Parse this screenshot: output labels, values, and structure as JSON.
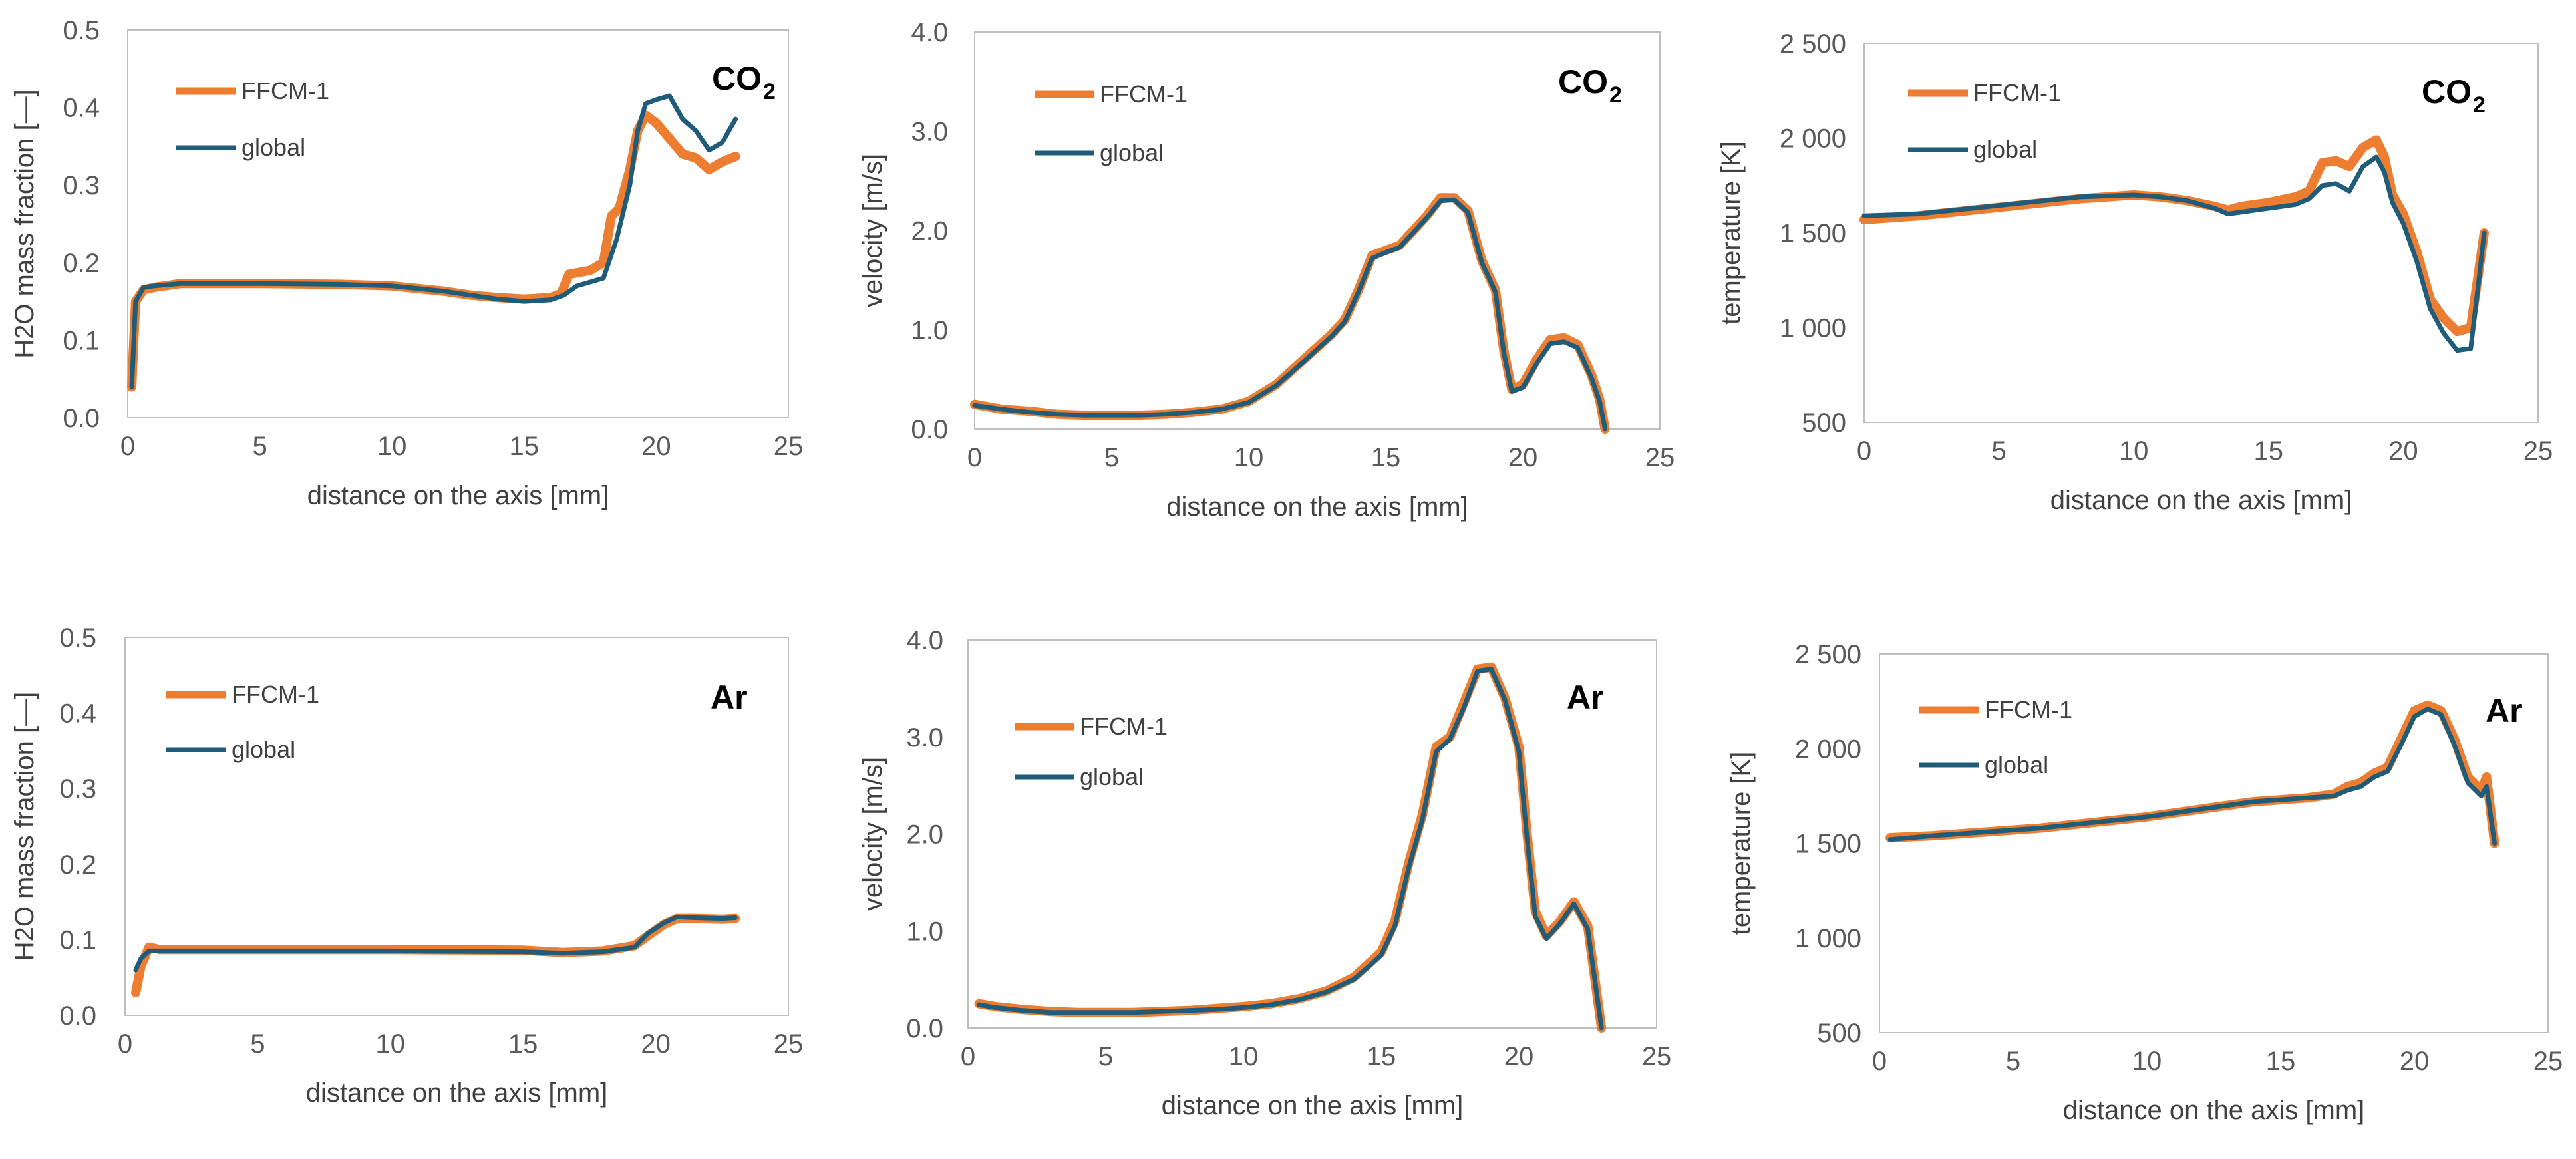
{
  "colors": {
    "ffcm": "#ED7D31",
    "global": "#1F5C7A",
    "axis": "#BFBFBF",
    "text": "#404040"
  },
  "chart_data": [
    {
      "type": "line",
      "id": "co2-h2o",
      "gas_label": "CO",
      "gas_subscript": "2",
      "xlabel": "distance on the axis [mm]",
      "ylabel": "H2O mass fraction  [—]",
      "xlim": [
        0,
        25
      ],
      "ylim": [
        0,
        0.5
      ],
      "xticks": [
        0,
        5,
        10,
        15,
        20,
        25
      ],
      "xtick_labels": [
        "0",
        "5",
        "10",
        "15",
        "20",
        "25"
      ],
      "yticks": [
        0,
        0.1,
        0.2,
        0.3,
        0.4,
        0.5
      ],
      "ytick_labels": [
        "0.0",
        "0.1",
        "0.2",
        "0.3",
        "0.4",
        "0.5"
      ],
      "legend": [
        "FFCM-1",
        "global"
      ],
      "series": [
        {
          "name": "FFCM-1",
          "x": [
            0.15,
            0.3,
            0.6,
            1,
            2,
            5,
            8,
            10,
            12,
            13,
            14,
            15,
            16,
            16.4,
            16.7,
            17.5,
            18,
            18.3,
            18.6,
            19,
            19.3,
            19.6,
            20,
            20.5,
            21,
            21.5,
            22,
            22.5,
            23
          ],
          "y": [
            0.04,
            0.15,
            0.165,
            0.168,
            0.173,
            0.173,
            0.172,
            0.17,
            0.163,
            0.158,
            0.155,
            0.153,
            0.155,
            0.16,
            0.185,
            0.19,
            0.2,
            0.26,
            0.27,
            0.32,
            0.37,
            0.39,
            0.38,
            0.36,
            0.34,
            0.335,
            0.32,
            0.33,
            0.337
          ]
        },
        {
          "name": "global",
          "x": [
            0.15,
            0.3,
            0.6,
            1,
            2,
            5,
            8,
            10,
            12,
            13,
            14,
            15,
            16,
            16.5,
            17,
            17.5,
            18,
            18.5,
            19,
            19.3,
            19.6,
            20,
            20.5,
            21,
            21.5,
            22,
            22.5,
            23
          ],
          "y": [
            0.04,
            0.15,
            0.168,
            0.17,
            0.173,
            0.173,
            0.172,
            0.17,
            0.163,
            0.158,
            0.153,
            0.15,
            0.152,
            0.158,
            0.17,
            0.175,
            0.18,
            0.23,
            0.3,
            0.37,
            0.405,
            0.41,
            0.415,
            0.385,
            0.37,
            0.345,
            0.355,
            0.385
          ]
        }
      ]
    },
    {
      "type": "line",
      "id": "co2-velocity",
      "gas_label": "CO",
      "gas_subscript": "2",
      "xlabel": "distance on the axis [mm]",
      "ylabel": "velocity [m/s]",
      "xlim": [
        0,
        25
      ],
      "ylim": [
        0,
        4
      ],
      "xticks": [
        0,
        5,
        10,
        15,
        20,
        25
      ],
      "xtick_labels": [
        "0",
        "5",
        "10",
        "15",
        "20",
        "25"
      ],
      "yticks": [
        0,
        1,
        2,
        3,
        4
      ],
      "ytick_labels": [
        "0.0",
        "1.0",
        "2.0",
        "3.0",
        "4.0"
      ],
      "legend": [
        "FFCM-1",
        "global"
      ],
      "series": [
        {
          "name": "FFCM-1",
          "x": [
            0,
            1,
            2,
            3,
            4,
            5,
            6,
            7,
            8,
            9,
            10,
            11,
            12,
            13,
            13.5,
            14,
            14.5,
            15,
            15.5,
            16,
            16.5,
            17,
            17.5,
            18,
            18.5,
            19,
            19.3,
            19.6,
            20,
            20.5,
            21,
            21.5,
            22,
            22.5,
            22.8,
            23
          ],
          "y": [
            0.25,
            0.2,
            0.18,
            0.15,
            0.14,
            0.14,
            0.14,
            0.15,
            0.17,
            0.2,
            0.28,
            0.45,
            0.7,
            0.95,
            1.1,
            1.4,
            1.75,
            1.8,
            1.85,
            2.0,
            2.15,
            2.33,
            2.33,
            2.2,
            1.7,
            1.4,
            0.8,
            0.4,
            0.45,
            0.7,
            0.9,
            0.92,
            0.85,
            0.55,
            0.3,
            0.0
          ]
        },
        {
          "name": "global",
          "x": [
            0,
            1,
            2,
            3,
            4,
            5,
            6,
            7,
            8,
            9,
            10,
            11,
            12,
            13,
            13.5,
            14,
            14.5,
            15,
            15.5,
            16,
            16.5,
            17,
            17.5,
            18,
            18.5,
            19,
            19.3,
            19.6,
            20,
            20.5,
            21,
            21.5,
            22,
            22.5,
            22.8,
            23
          ],
          "y": [
            0.24,
            0.2,
            0.17,
            0.15,
            0.14,
            0.14,
            0.14,
            0.15,
            0.17,
            0.2,
            0.27,
            0.44,
            0.68,
            0.93,
            1.08,
            1.38,
            1.72,
            1.78,
            1.83,
            1.98,
            2.13,
            2.3,
            2.31,
            2.18,
            1.68,
            1.38,
            0.78,
            0.38,
            0.42,
            0.66,
            0.86,
            0.88,
            0.82,
            0.52,
            0.28,
            0.0
          ]
        }
      ]
    },
    {
      "type": "line",
      "id": "co2-temperature",
      "gas_label": "CO",
      "gas_subscript": "2",
      "xlabel": "distance on the axis [mm]",
      "ylabel": "temperature [K]",
      "xlim": [
        0,
        25
      ],
      "ylim": [
        500,
        2500
      ],
      "xticks": [
        0,
        5,
        10,
        15,
        20,
        25
      ],
      "xtick_labels": [
        "0",
        "5",
        "10",
        "15",
        "20",
        "25"
      ],
      "yticks": [
        500,
        1000,
        1500,
        2000,
        2500
      ],
      "ytick_labels": [
        "500",
        "1 000",
        "1 500",
        "2 000",
        "2 500"
      ],
      "legend": [
        "FFCM-1",
        "global"
      ],
      "series": [
        {
          "name": "FFCM-1",
          "x": [
            0,
            2,
            4,
            6,
            8,
            10,
            11,
            12,
            13,
            13.5,
            14,
            15,
            16,
            16.5,
            17,
            17.5,
            18,
            18.5,
            19,
            19.3,
            19.6,
            20,
            20.5,
            21,
            21.5,
            22,
            22.5,
            22.8,
            23
          ],
          "y": [
            1570,
            1590,
            1620,
            1650,
            1680,
            1700,
            1690,
            1670,
            1640,
            1620,
            1640,
            1660,
            1690,
            1720,
            1870,
            1880,
            1850,
            1950,
            1990,
            1900,
            1700,
            1600,
            1400,
            1150,
            1050,
            980,
            1000,
            1300,
            1500
          ]
        },
        {
          "name": "global",
          "x": [
            0,
            2,
            4,
            6,
            8,
            10,
            11,
            12,
            13,
            13.5,
            14,
            15,
            16,
            16.5,
            17,
            17.5,
            18,
            18.5,
            19,
            19.3,
            19.6,
            20,
            20.5,
            21,
            21.5,
            22,
            22.5,
            22.8,
            23
          ],
          "y": [
            1590,
            1600,
            1630,
            1660,
            1690,
            1700,
            1690,
            1670,
            1630,
            1600,
            1610,
            1630,
            1650,
            1680,
            1750,
            1760,
            1720,
            1850,
            1900,
            1820,
            1660,
            1550,
            1350,
            1100,
            970,
            880,
            890,
            1250,
            1500
          ]
        }
      ]
    },
    {
      "type": "line",
      "id": "ar-h2o",
      "gas_label": "Ar",
      "gas_subscript": "",
      "xlabel": "distance on the axis [mm]",
      "ylabel": "H2O mass fraction  [—]",
      "xlim": [
        0,
        25
      ],
      "ylim": [
        0,
        0.5
      ],
      "xticks": [
        0,
        5,
        10,
        15,
        20,
        25
      ],
      "xtick_labels": [
        "0",
        "5",
        "10",
        "15",
        "20",
        "25"
      ],
      "yticks": [
        0,
        0.1,
        0.2,
        0.3,
        0.4,
        0.5
      ],
      "ytick_labels": [
        "0.0",
        "0.1",
        "0.2",
        "0.3",
        "0.4",
        "0.5"
      ],
      "legend": [
        "FFCM-1",
        "global"
      ],
      "series": [
        {
          "name": "FFCM-1",
          "x": [
            0.4,
            0.6,
            0.9,
            1.3,
            2,
            5,
            10,
            15,
            16.5,
            18,
            19.2,
            19.7,
            20.3,
            20.8,
            21.5,
            22.5,
            23
          ],
          "y": [
            0.03,
            0.065,
            0.09,
            0.087,
            0.087,
            0.087,
            0.087,
            0.086,
            0.083,
            0.085,
            0.092,
            0.105,
            0.12,
            0.128,
            0.128,
            0.127,
            0.128
          ]
        },
        {
          "name": "global",
          "x": [
            0.4,
            0.6,
            0.9,
            1.3,
            2,
            5,
            10,
            15,
            16.5,
            18,
            19.2,
            19.7,
            20.3,
            20.8,
            21.5,
            22.5,
            23
          ],
          "y": [
            0.06,
            0.075,
            0.085,
            0.085,
            0.085,
            0.085,
            0.085,
            0.084,
            0.082,
            0.084,
            0.09,
            0.108,
            0.122,
            0.13,
            0.129,
            0.128,
            0.129
          ]
        }
      ]
    },
    {
      "type": "line",
      "id": "ar-velocity",
      "gas_label": "Ar",
      "gas_subscript": "",
      "xlabel": "distance on the axis [mm]",
      "ylabel": "velocity [m/s]",
      "xlim": [
        0,
        25
      ],
      "ylim": [
        0,
        4
      ],
      "xticks": [
        0,
        5,
        10,
        15,
        20,
        25
      ],
      "xtick_labels": [
        "0",
        "5",
        "10",
        "15",
        "20",
        "25"
      ],
      "yticks": [
        0,
        1,
        2,
        3,
        4
      ],
      "ytick_labels": [
        "0.0",
        "1.0",
        "2.0",
        "3.0",
        "4.0"
      ],
      "legend": [
        "FFCM-1",
        "global"
      ],
      "series": [
        {
          "name": "FFCM-1",
          "x": [
            0.4,
            1,
            2,
            3,
            4,
            5,
            6,
            7,
            8,
            9,
            10,
            11,
            12,
            13,
            14,
            14.5,
            15,
            15.5,
            16,
            16.5,
            17,
            17.5,
            18,
            18.5,
            19,
            19.5,
            20,
            20.3,
            20.6,
            21,
            21.5,
            22,
            22.5,
            23
          ],
          "y": [
            0.25,
            0.22,
            0.19,
            0.17,
            0.16,
            0.16,
            0.16,
            0.17,
            0.18,
            0.2,
            0.22,
            0.25,
            0.3,
            0.38,
            0.52,
            0.65,
            0.78,
            1.1,
            1.7,
            2.2,
            2.9,
            3.0,
            3.35,
            3.7,
            3.72,
            3.4,
            2.9,
            2.0,
            1.2,
            0.95,
            1.1,
            1.3,
            1.05,
            0.0
          ]
        },
        {
          "name": "global",
          "x": [
            0.4,
            1,
            2,
            3,
            4,
            5,
            6,
            7,
            8,
            9,
            10,
            11,
            12,
            13,
            14,
            14.5,
            15,
            15.5,
            16,
            16.5,
            17,
            17.5,
            18,
            18.5,
            19,
            19.5,
            20,
            20.3,
            20.6,
            21,
            21.5,
            22,
            22.5,
            23
          ],
          "y": [
            0.24,
            0.21,
            0.18,
            0.16,
            0.16,
            0.16,
            0.16,
            0.17,
            0.18,
            0.19,
            0.21,
            0.24,
            0.29,
            0.37,
            0.5,
            0.62,
            0.75,
            1.05,
            1.65,
            2.15,
            2.85,
            2.98,
            3.3,
            3.68,
            3.7,
            3.38,
            2.85,
            1.95,
            1.15,
            0.92,
            1.08,
            1.28,
            1.02,
            0.0
          ]
        }
      ]
    },
    {
      "type": "line",
      "id": "ar-temperature",
      "gas_label": "Ar",
      "gas_subscript": "",
      "xlabel": "distance on the axis [mm]",
      "ylabel": "temperature [K]",
      "xlim": [
        0,
        25
      ],
      "ylim": [
        500,
        2500
      ],
      "xticks": [
        0,
        5,
        10,
        15,
        20,
        25
      ],
      "xtick_labels": [
        "0",
        "5",
        "10",
        "15",
        "20",
        "25"
      ],
      "yticks": [
        500,
        1000,
        1500,
        2000,
        2500
      ],
      "ytick_labels": [
        "500",
        "1 000",
        "1 500",
        "2 000",
        "2 500"
      ],
      "legend": [
        "FFCM-1",
        "global"
      ],
      "series": [
        {
          "name": "FFCM-1",
          "x": [
            0.4,
            2,
            4,
            6,
            8,
            10,
            11,
            12,
            13,
            14,
            15,
            16,
            17,
            17.5,
            18,
            18.5,
            19,
            19.5,
            20,
            20.5,
            21,
            21.5,
            22,
            22.5,
            22.7,
            23
          ],
          "y": [
            1530,
            1540,
            1560,
            1580,
            1610,
            1640,
            1660,
            1680,
            1700,
            1720,
            1730,
            1740,
            1760,
            1800,
            1820,
            1870,
            1900,
            2050,
            2200,
            2230,
            2200,
            2050,
            1850,
            1780,
            1850,
            1500
          ]
        },
        {
          "name": "global",
          "x": [
            0.4,
            2,
            4,
            6,
            8,
            10,
            11,
            12,
            13,
            14,
            15,
            16,
            17,
            17.5,
            18,
            18.5,
            19,
            19.5,
            20,
            20.5,
            21,
            21.5,
            22,
            22.5,
            22.7,
            23
          ],
          "y": [
            1520,
            1540,
            1560,
            1580,
            1610,
            1640,
            1660,
            1680,
            1700,
            1720,
            1730,
            1740,
            1750,
            1780,
            1800,
            1850,
            1880,
            2020,
            2170,
            2210,
            2180,
            2020,
            1820,
            1750,
            1800,
            1500
          ]
        }
      ]
    }
  ]
}
